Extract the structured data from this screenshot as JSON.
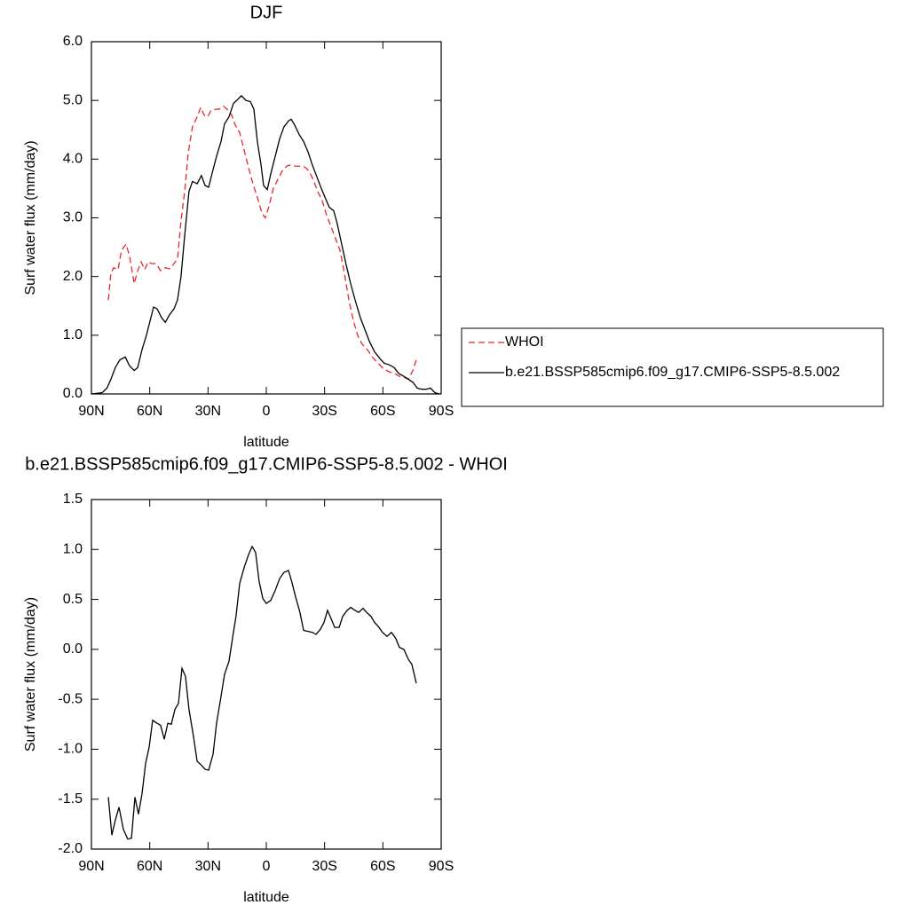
{
  "chart_data": [
    {
      "type": "line",
      "title": "DJF",
      "xlabel": "latitude",
      "ylabel": "Surf water flux (mm/day)",
      "xlim": [
        90,
        -90
      ],
      "xticks": [
        {
          "value": 90,
          "label": "90N"
        },
        {
          "value": 60,
          "label": "60N"
        },
        {
          "value": 30,
          "label": "30N"
        },
        0,
        {
          "value": -30,
          "label": "30S"
        },
        {
          "value": -60,
          "label": "60S"
        },
        {
          "value": -90,
          "label": "90S"
        }
      ],
      "ylim": [
        0,
        6
      ],
      "yticks": [
        {
          "value": 0,
          "label": "0.0"
        },
        {
          "value": 1,
          "label": "1.0"
        },
        {
          "value": 2,
          "label": "2.0"
        },
        {
          "value": 3,
          "label": "3.0"
        },
        {
          "value": 4,
          "label": "4.0"
        },
        {
          "value": 5,
          "label": "5.0"
        },
        {
          "value": 6,
          "label": "6.0"
        }
      ],
      "grid": false,
      "legend": "right",
      "series": [
        {
          "name": "WHOI",
          "color": "#e8262b",
          "line_style": "dashed",
          "x": [
            81.3,
            80,
            78.6,
            76.3,
            74.5,
            72.2,
            70.4,
            68,
            66.2,
            64.4,
            62.6,
            60.8,
            58.9,
            56.7,
            54.4,
            52,
            49.8,
            47.5,
            45.7,
            43.9,
            42,
            40.2,
            38,
            35.6,
            33.8,
            32,
            30.2,
            28.4,
            26,
            24.3,
            22,
            20.2,
            17.8,
            16,
            13.7,
            11.4,
            9.1,
            6.9,
            4.6,
            2.3,
            0.5,
            -1.4,
            -3.6,
            -5.9,
            -8.2,
            -10.5,
            -12.3,
            -15,
            -17.3,
            -19.6,
            -21.9,
            -24.2,
            -26.4,
            -28.7,
            -31,
            -33.3,
            -35.6,
            -37.9,
            -40.2,
            -42.5,
            -44.8,
            -47,
            -49.3,
            -52.1,
            -54.8,
            -57.6,
            -60.3,
            -63,
            -65.8,
            -68.5,
            -71.2,
            -73.1,
            -75.4,
            -77.2
          ],
          "values": [
            1.6,
            2.05,
            2.15,
            2.12,
            2.45,
            2.55,
            2.35,
            1.88,
            2.1,
            2.25,
            2.12,
            2.25,
            2.22,
            2.22,
            2.1,
            2.15,
            2.13,
            2.22,
            2.3,
            2.95,
            3.45,
            4.1,
            4.55,
            4.72,
            4.88,
            4.75,
            4.72,
            4.83,
            4.85,
            4.85,
            4.9,
            4.85,
            4.75,
            4.58,
            4.45,
            4.15,
            3.85,
            3.58,
            3.35,
            3.08,
            3.0,
            3.2,
            3.5,
            3.65,
            3.8,
            3.88,
            3.9,
            3.88,
            3.88,
            3.87,
            3.8,
            3.65,
            3.45,
            3.3,
            3.05,
            2.85,
            2.65,
            2.45,
            2.05,
            1.6,
            1.25,
            1.0,
            0.85,
            0.75,
            0.62,
            0.52,
            0.43,
            0.38,
            0.35,
            0.3,
            0.28,
            0.25,
            0.4,
            0.58
          ]
        },
        {
          "name": "b.e21.BSSP585cmip6.f09_g17.CMIP6-SSP5-8.5.002",
          "color": "#000000",
          "line_style": "solid",
          "x": [
            90,
            84.5,
            82,
            80,
            77.7,
            75.4,
            72.6,
            70.4,
            68,
            66.2,
            64,
            61.7,
            59.4,
            58,
            56.2,
            53.9,
            52,
            49.8,
            47.5,
            45.7,
            43.9,
            42,
            39.8,
            38,
            35.6,
            33.4,
            31.5,
            29.7,
            27.4,
            25.6,
            23.3,
            21.5,
            19.2,
            16.9,
            14.6,
            12.8,
            10.5,
            8.2,
            6.4,
            4.6,
            2.7,
            1.4,
            -0.5,
            -2.3,
            -4.6,
            -6.9,
            -9.1,
            -11.4,
            -12.8,
            -14.6,
            -16.9,
            -19.2,
            -21.5,
            -23.7,
            -26,
            -28.3,
            -30.6,
            -32.4,
            -34.7,
            -36.5,
            -38.8,
            -41.1,
            -43.4,
            -45.7,
            -48.4,
            -50.7,
            -53,
            -55.7,
            -58.5,
            -60.8,
            -63,
            -65.8,
            -68.1,
            -70.8,
            -73.1,
            -75.4,
            -77.7,
            -80,
            -82.2,
            -84.5,
            -86.8,
            -89
          ],
          "values": [
            0,
            0.02,
            0.1,
            0.25,
            0.45,
            0.58,
            0.63,
            0.48,
            0.4,
            0.45,
            0.75,
            1.0,
            1.3,
            1.48,
            1.45,
            1.3,
            1.22,
            1.35,
            1.45,
            1.6,
            2.0,
            2.7,
            3.45,
            3.62,
            3.58,
            3.72,
            3.55,
            3.52,
            3.82,
            4.05,
            4.3,
            4.6,
            4.72,
            4.95,
            5.02,
            5.08,
            5.0,
            4.98,
            4.85,
            4.3,
            3.9,
            3.55,
            3.48,
            3.75,
            4.05,
            4.35,
            4.55,
            4.65,
            4.68,
            4.58,
            4.42,
            4.3,
            4.12,
            3.9,
            3.7,
            3.5,
            3.32,
            3.18,
            3.12,
            2.9,
            2.55,
            2.2,
            1.88,
            1.6,
            1.3,
            1.1,
            0.9,
            0.72,
            0.6,
            0.52,
            0.5,
            0.45,
            0.35,
            0.3,
            0.25,
            0.2,
            0.1,
            0.08,
            0.08,
            0.1,
            0.02,
            0
          ]
        }
      ]
    },
    {
      "type": "line",
      "title": "b.e21.BSSP585cmip6.f09_g17.CMIP6-SSP5-8.5.002 - WHOI",
      "xlabel": "latitude",
      "ylabel": "Surf water flux (mm/day)",
      "xlim": [
        90,
        -90
      ],
      "xticks": [
        {
          "value": 90,
          "label": "90N"
        },
        {
          "value": 60,
          "label": "60N"
        },
        {
          "value": 30,
          "label": "30N"
        },
        0,
        {
          "value": -30,
          "label": "30S"
        },
        {
          "value": -60,
          "label": "60S"
        },
        {
          "value": -90,
          "label": "90S"
        }
      ],
      "ylim": [
        -2,
        1.5
      ],
      "yticks": [
        {
          "value": -2,
          "label": "-2.0"
        },
        -1.5,
        {
          "value": -1,
          "label": "-1.0"
        },
        -0.5,
        {
          "value": 0,
          "label": "0.0"
        },
        0.5,
        {
          "value": 1,
          "label": "1.0"
        },
        1.5
      ],
      "grid": false,
      "color": "#000000",
      "x": [
        81.3,
        79.5,
        77.7,
        75.8,
        73.6,
        71.3,
        69.4,
        67.6,
        65.8,
        64,
        62.1,
        60.3,
        58.5,
        56.2,
        54.4,
        52.5,
        50.7,
        48.9,
        47,
        45.2,
        43.4,
        41.6,
        39.8,
        37.5,
        35.6,
        33.4,
        31.5,
        29.7,
        27.4,
        25.6,
        23.3,
        21.5,
        19.2,
        17.4,
        15.6,
        13.7,
        11.4,
        9.1,
        7.3,
        5.5,
        3.7,
        1.8,
        0,
        -2.3,
        -4.6,
        -6.9,
        -9.1,
        -11.4,
        -13.2,
        -15,
        -17.3,
        -19.2,
        -21.5,
        -23.7,
        -25.6,
        -27.8,
        -29.7,
        -31.5,
        -33.3,
        -35.2,
        -37.5,
        -39.3,
        -41.6,
        -43.4,
        -45.7,
        -47.5,
        -49.8,
        -51.6,
        -53.9,
        -55.7,
        -58,
        -59.8,
        -62.1,
        -64.4,
        -66.6,
        -68.5,
        -70.8,
        -73.1,
        -74.9,
        -77.2
      ],
      "values": [
        -1.48,
        -1.86,
        -1.71,
        -1.58,
        -1.8,
        -1.9,
        -1.89,
        -1.48,
        -1.65,
        -1.45,
        -1.14,
        -0.98,
        -0.71,
        -0.74,
        -0.76,
        -0.9,
        -0.74,
        -0.75,
        -0.6,
        -0.54,
        -0.19,
        -0.27,
        -0.6,
        -0.87,
        -1.12,
        -1.16,
        -1.2,
        -1.21,
        -1.05,
        -0.74,
        -0.47,
        -0.25,
        -0.12,
        0.11,
        0.33,
        0.66,
        0.82,
        0.95,
        1.03,
        0.97,
        0.68,
        0.51,
        0.46,
        0.49,
        0.59,
        0.71,
        0.77,
        0.79,
        0.67,
        0.53,
        0.37,
        0.19,
        0.18,
        0.17,
        0.15,
        0.2,
        0.27,
        0.39,
        0.31,
        0.22,
        0.22,
        0.33,
        0.39,
        0.42,
        0.39,
        0.37,
        0.41,
        0.37,
        0.33,
        0.27,
        0.22,
        0.17,
        0.13,
        0.17,
        0.11,
        0.02,
        0.0,
        -0.1,
        -0.15,
        -0.34
      ]
    }
  ]
}
